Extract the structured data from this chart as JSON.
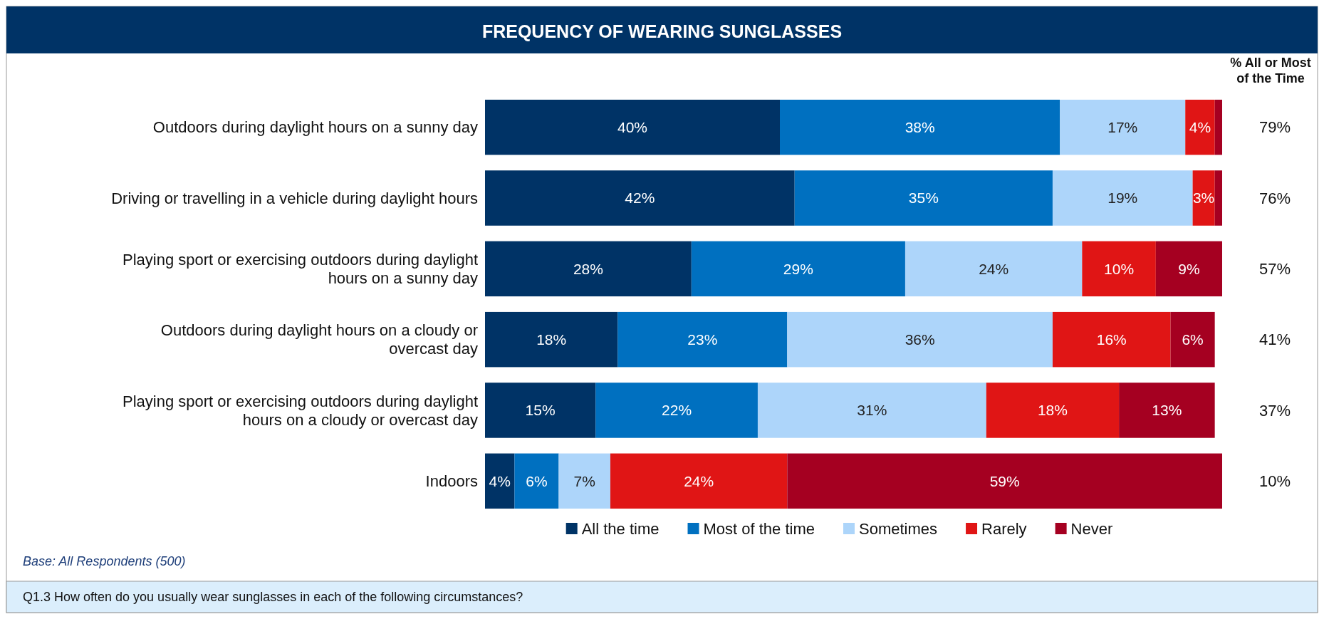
{
  "chart_data": {
    "type": "bar",
    "orientation": "horizontal",
    "stacked": true,
    "title": "FREQUENCY OF WEARING SUNGLASSES",
    "categories": [
      "Outdoors during daylight hours on a sunny day",
      "Driving or travelling in a vehicle during daylight hours",
      "Playing sport or exercising outdoors during daylight hours on a sunny day",
      "Outdoors during daylight hours on a cloudy or overcast day",
      "Playing sport or exercising outdoors during daylight hours on a cloudy or overcast day",
      "Indoors"
    ],
    "series": [
      {
        "name": "All the time",
        "color": "#003366",
        "values": [
          40,
          42,
          28,
          18,
          15,
          4
        ],
        "value_labels": [
          "40%",
          "42%",
          "28%",
          "18%",
          "15%",
          "4%"
        ]
      },
      {
        "name": "Most of the time",
        "color": "#0070c0",
        "values": [
          38,
          35,
          29,
          23,
          22,
          6
        ],
        "value_labels": [
          "38%",
          "35%",
          "29%",
          "23%",
          "22%",
          "6%"
        ]
      },
      {
        "name": "Sometimes",
        "color": "#add5fa",
        "values": [
          17,
          19,
          24,
          36,
          31,
          7
        ],
        "value_labels": [
          "17%",
          "19%",
          "24%",
          "36%",
          "31%",
          "7%"
        ]
      },
      {
        "name": "Rarely",
        "color": "#e01515",
        "values": [
          4,
          3,
          10,
          16,
          18,
          24
        ],
        "value_labels": [
          "4%",
          "3%",
          "10%",
          "16%",
          "18%",
          "24%"
        ]
      },
      {
        "name": "Never",
        "color": "#a50021",
        "values": [
          1,
          1,
          9,
          6,
          13,
          59
        ],
        "value_labels": [
          null,
          null,
          "9%",
          "6%",
          "13%",
          "59%"
        ]
      }
    ],
    "xlim": [
      0,
      100
    ],
    "tick_labels": "y",
    "legend": "bottom",
    "annotations": [
      "% All or Most of the Time",
      "Base: All Respondents  (500)",
      "Q1.3 How often do you usually wear sunglasses in each of the following circumstances?",
      "79%",
      "76%",
      "57%",
      "41%",
      "37%",
      "10%"
    ]
  }
}
